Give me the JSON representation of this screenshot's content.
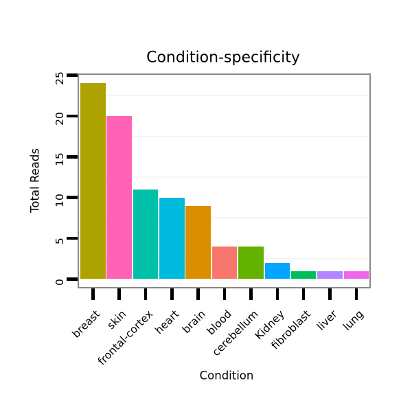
{
  "chart_data": {
    "type": "bar",
    "title": "Condition-specificity",
    "xlabel": "Condition",
    "ylabel": "Total Reads",
    "categories": [
      "breast",
      "skin",
      "frontal-cortex",
      "heart",
      "brain",
      "blood",
      "cerebellum",
      "Kidney",
      "fibroblast",
      "liver",
      "lung"
    ],
    "values": [
      24,
      20,
      11,
      10,
      9,
      4,
      4,
      2,
      1,
      1,
      1
    ],
    "bar_colors": [
      "#AEA200",
      "#FF63B6",
      "#00C1A7",
      "#00BADE",
      "#DB8E00",
      "#F8766D",
      "#64B200",
      "#00A6FF",
      "#00BD5C",
      "#B385FF",
      "#EF67EB"
    ],
    "yticks": [
      0,
      5,
      10,
      15,
      20,
      25
    ],
    "ylim": [
      -1.2,
      25.2
    ],
    "minor_gridlines": [
      2.5,
      7.5,
      12.5,
      17.5,
      22.5
    ],
    "grid": "horizontal minor gridlines only",
    "legend": "none",
    "panel_border_color": "#888888",
    "gridline_color": "#f4f4f4",
    "tick_color": "#000000",
    "x_label_rotation_deg": 45
  }
}
